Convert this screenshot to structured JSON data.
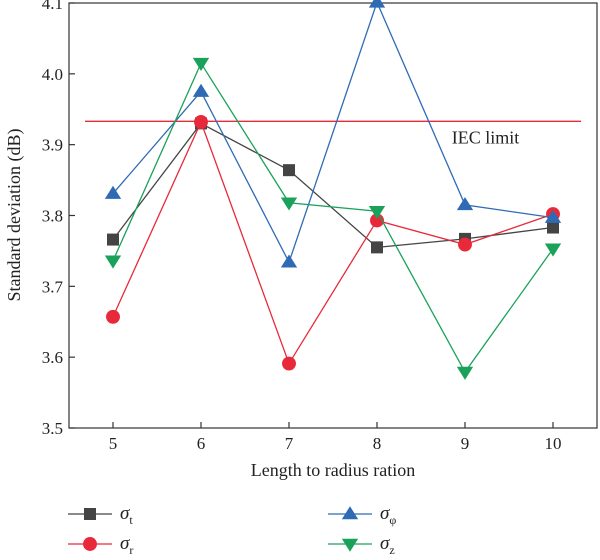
{
  "chart_data": {
    "type": "line",
    "xlabel": "Length to radius ration",
    "ylabel": "Standard deviation (dB)",
    "x": [
      5,
      6,
      7,
      8,
      9,
      10
    ],
    "xlim": [
      4.5,
      10.5
    ],
    "ylim": [
      3.5,
      4.1
    ],
    "yticks": [
      "3.5",
      "3.6",
      "3.7",
      "3.8",
      "3.9",
      "4.0",
      "4.1"
    ],
    "grid": false,
    "legend_placement": "bottom",
    "series": [
      {
        "name": "σt",
        "symbol": "σ",
        "sub": "t",
        "marker": "square",
        "color": "#444444",
        "values": [
          3.766,
          3.93,
          3.864,
          3.755,
          3.767,
          3.783
        ]
      },
      {
        "name": "σr",
        "symbol": "σ",
        "sub": "r",
        "marker": "circle",
        "color": "#e8293a",
        "values": [
          3.657,
          3.932,
          3.591,
          3.793,
          3.759,
          3.802
        ]
      },
      {
        "name": "σφ",
        "symbol": "σ",
        "sub": "φ",
        "marker": "triangle-up",
        "color": "#2f6bb5",
        "values": [
          3.831,
          3.975,
          3.734,
          4.101,
          3.815,
          3.797
        ]
      },
      {
        "name": "σz",
        "symbol": "σ",
        "sub": "z",
        "marker": "triangle-down",
        "color": "#1aa15a",
        "values": [
          3.736,
          4.015,
          3.818,
          3.806,
          3.579,
          3.753
        ]
      }
    ],
    "reference_line": {
      "label": "IEC limit",
      "y": 3.933,
      "color": "#e8293a"
    }
  }
}
